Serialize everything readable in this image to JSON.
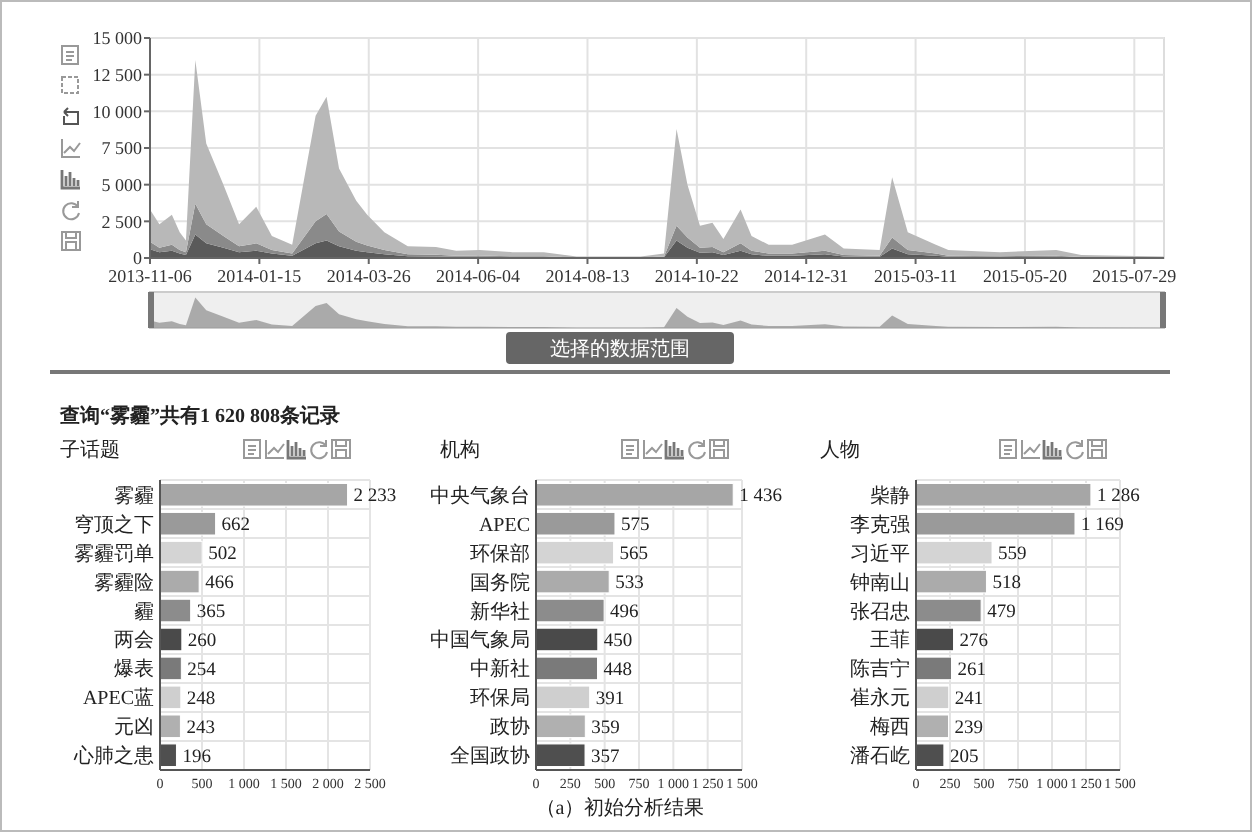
{
  "chart_data": [
    {
      "type": "area",
      "stacked": true,
      "x": [
        "2013-11-06",
        "2013-11-12",
        "2013-11-20",
        "2013-11-25",
        "2013-11-29",
        "2013-12-05",
        "2013-12-12",
        "2013-12-23",
        "2014-01-02",
        "2014-01-13",
        "2014-01-23",
        "2014-02-05",
        "2014-02-20",
        "2014-02-27",
        "2014-03-07",
        "2014-03-18",
        "2014-03-25",
        "2014-04-05",
        "2014-04-20",
        "2014-05-08",
        "2014-05-21",
        "2014-06-05",
        "2014-06-26",
        "2014-07-16",
        "2014-08-06",
        "2014-09-16",
        "2014-10-01",
        "2014-10-09",
        "2014-10-16",
        "2014-10-24",
        "2014-11-01",
        "2014-11-08",
        "2014-11-19",
        "2014-11-26",
        "2014-12-07",
        "2014-12-22",
        "2015-01-12",
        "2015-01-24",
        "2015-02-16",
        "2015-02-24",
        "2015-03-06",
        "2015-03-24",
        "2015-04-01",
        "2015-05-04",
        "2015-06-09",
        "2015-06-25",
        "2015-08-17"
      ],
      "series": [
        {
          "color": "#5a5a5a",
          "values": [
            600,
            400,
            500,
            300,
            200,
            1600,
            1000,
            700,
            400,
            500,
            300,
            150,
            1000,
            1200,
            800,
            500,
            400,
            250,
            120,
            100,
            80,
            80,
            60,
            60,
            20,
            20,
            50,
            1200,
            700,
            350,
            400,
            200,
            500,
            250,
            150,
            150,
            250,
            100,
            80,
            650,
            250,
            150,
            80,
            60,
            80,
            30,
            20
          ]
        },
        {
          "color": "#8a8a8a",
          "values": [
            500,
            300,
            400,
            250,
            200,
            2100,
            1300,
            800,
            400,
            500,
            250,
            150,
            1500,
            1800,
            1000,
            600,
            450,
            300,
            130,
            120,
            80,
            90,
            60,
            60,
            20,
            20,
            50,
            1000,
            700,
            350,
            350,
            200,
            500,
            250,
            150,
            150,
            250,
            100,
            80,
            750,
            300,
            150,
            80,
            60,
            80,
            30,
            20
          ]
        },
        {
          "color": "#b8b8b8",
          "values": [
            2200,
            1600,
            2050,
            1200,
            800,
            9800,
            5500,
            3500,
            1500,
            2500,
            950,
            600,
            7200,
            8000,
            4300,
            2800,
            2100,
            1200,
            550,
            530,
            340,
            380,
            280,
            280,
            60,
            60,
            200,
            6600,
            3600,
            1500,
            1650,
            900,
            2300,
            1000,
            600,
            600,
            1100,
            450,
            390,
            4100,
            1200,
            600,
            390,
            280,
            390,
            140,
            60
          ]
        }
      ],
      "xlim": [
        "2013-11-06",
        "2015-08-17"
      ],
      "xticks": [
        "2013-11-06",
        "2014-01-15",
        "2014-03-26",
        "2014-06-04",
        "2014-08-13",
        "2014-10-22",
        "2014-12-31",
        "2015-03-11",
        "2015-05-20",
        "2015-07-29"
      ],
      "ylim": [
        0,
        15000
      ],
      "yticks": [
        0,
        {
          "value": 2500,
          "label": "2 500"
        },
        {
          "value": 5000,
          "label": "5 000"
        },
        {
          "value": 7500,
          "label": "7 500"
        },
        {
          "value": 10000,
          "label": "10 000"
        },
        {
          "value": 12500,
          "label": "12 500"
        },
        {
          "value": 15000,
          "label": "15 000"
        }
      ],
      "grid": true,
      "annotations": [
        "选择的数据范围"
      ]
    },
    {
      "type": "bar",
      "orientation": "horizontal",
      "title": "子话题",
      "annotations": [
        "查询“雾霾”共有1 620 808条记录"
      ],
      "categories": [
        "雾霾",
        "穹顶之下",
        "雾霾罚单",
        "雾霾险",
        "霾",
        "两会",
        "爆表",
        "APEC蓝",
        "元凶",
        "心肺之患"
      ],
      "values": [
        2233,
        662,
        502,
        466,
        365,
        260,
        254,
        248,
        243,
        196
      ],
      "value_labels": [
        "2 233",
        "662",
        "502",
        "466",
        "365",
        "260",
        "254",
        "248",
        "243",
        "196"
      ],
      "colors": [
        "#a6a6a6",
        "#9a9a9a",
        "#d4d4d4",
        "#ababab",
        "#8c8c8c",
        "#4a4a4a",
        "#7a7a7a",
        "#cfcfcf",
        "#b0b0b0",
        "#4f4f4f"
      ],
      "xlim": [
        0,
        2500
      ],
      "xticks": [
        0,
        500,
        {
          "value": 1000,
          "label": "1 000"
        },
        {
          "value": 1500,
          "label": "1 500"
        },
        {
          "value": 2000,
          "label": "2 000"
        },
        {
          "value": 2500,
          "label": "2 500"
        }
      ],
      "grid": true
    },
    {
      "type": "bar",
      "orientation": "horizontal",
      "title": "机构",
      "annotations": [
        "（a）初始分析结果"
      ],
      "categories": [
        "中央气象台",
        "APEC",
        "环保部",
        "国务院",
        "新华社",
        "中国气象局",
        "中新社",
        "环保局",
        "政协",
        "全国政协"
      ],
      "values": [
        1436,
        575,
        565,
        533,
        496,
        450,
        448,
        391,
        359,
        357
      ],
      "value_labels": [
        "1 436",
        "575",
        "565",
        "533",
        "496",
        "450",
        "448",
        "391",
        "359",
        "357"
      ],
      "colors": [
        "#a6a6a6",
        "#9a9a9a",
        "#d4d4d4",
        "#ababab",
        "#8c8c8c",
        "#4a4a4a",
        "#7a7a7a",
        "#cfcfcf",
        "#b0b0b0",
        "#4f4f4f"
      ],
      "xlim": [
        0,
        1500
      ],
      "xticks": [
        0,
        250,
        500,
        750,
        {
          "value": 1000,
          "label": "1 000"
        },
        {
          "value": 1250,
          "label": "1 250"
        },
        {
          "value": 1500,
          "label": "1 500"
        }
      ],
      "grid": true
    },
    {
      "type": "bar",
      "orientation": "horizontal",
      "title": "人物",
      "categories": [
        "柴静",
        "李克强",
        "习近平",
        "钟南山",
        "张召忠",
        "王菲",
        "陈吉宁",
        "崔永元",
        "梅西",
        "潘石屹"
      ],
      "values": [
        1286,
        1169,
        559,
        518,
        479,
        276,
        261,
        241,
        239,
        205
      ],
      "value_labels": [
        "1 286",
        "1 169",
        "559",
        "518",
        "479",
        "276",
        "261",
        "241",
        "239",
        "205"
      ],
      "colors": [
        "#a6a6a6",
        "#9a9a9a",
        "#d4d4d4",
        "#ababab",
        "#8c8c8c",
        "#4a4a4a",
        "#7a7a7a",
        "#cfcfcf",
        "#b0b0b0",
        "#4f4f4f"
      ],
      "xlim": [
        0,
        1500
      ],
      "xticks": [
        0,
        250,
        500,
        750,
        {
          "value": 1000,
          "label": "1 000"
        },
        {
          "value": 1250,
          "label": "1 250"
        },
        {
          "value": 1500,
          "label": "1 500"
        }
      ],
      "grid": true
    }
  ]
}
